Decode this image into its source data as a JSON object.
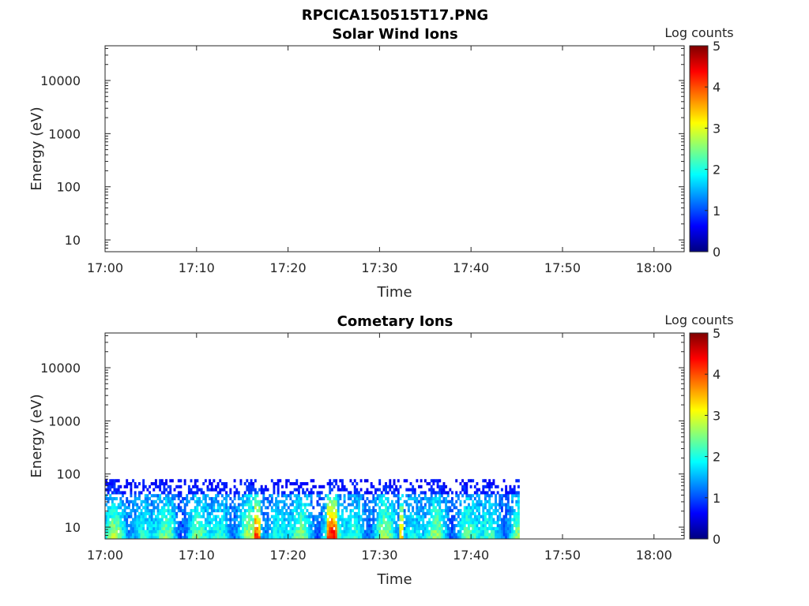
{
  "figure_title": "RPCICA150515T17.PNG",
  "chart_data": [
    {
      "type": "heatmap",
      "title": "Solar Wind Ions",
      "xlabel": "Time",
      "ylabel": "Energy (eV)",
      "x_tick_labels": [
        "17:00",
        "17:10",
        "17:20",
        "17:30",
        "17:40",
        "17:50",
        "18:00"
      ],
      "x_range_minutes": [
        0,
        63.3
      ],
      "y_scale": "log",
      "y_tick_labels": [
        "10",
        "100",
        "1000",
        "10000"
      ],
      "y_range": [
        6,
        45000
      ],
      "colorbar": {
        "label": "Log counts",
        "range": [
          0,
          5
        ],
        "tick_labels": [
          "0",
          "1",
          "2",
          "3",
          "4",
          "5"
        ],
        "colormap": "jet"
      },
      "data_present": false
    },
    {
      "type": "heatmap",
      "title": "Cometary Ions",
      "xlabel": "Time",
      "ylabel": "Energy (eV)",
      "x_tick_labels": [
        "17:00",
        "17:10",
        "17:20",
        "17:30",
        "17:40",
        "17:50",
        "18:00"
      ],
      "x_range_minutes": [
        0,
        63.3
      ],
      "y_scale": "log",
      "y_tick_labels": [
        "10",
        "100",
        "1000",
        "10000"
      ],
      "y_range": [
        6,
        45000
      ],
      "colorbar": {
        "label": "Log counts",
        "range": [
          0,
          5
        ],
        "tick_labels": [
          "0",
          "1",
          "2",
          "3",
          "4",
          "5"
        ],
        "colormap": "jet"
      },
      "data_present": true,
      "data_extent": {
        "time_minutes": [
          0,
          45.3
        ],
        "energy_ev": [
          6,
          80
        ]
      }
    }
  ]
}
